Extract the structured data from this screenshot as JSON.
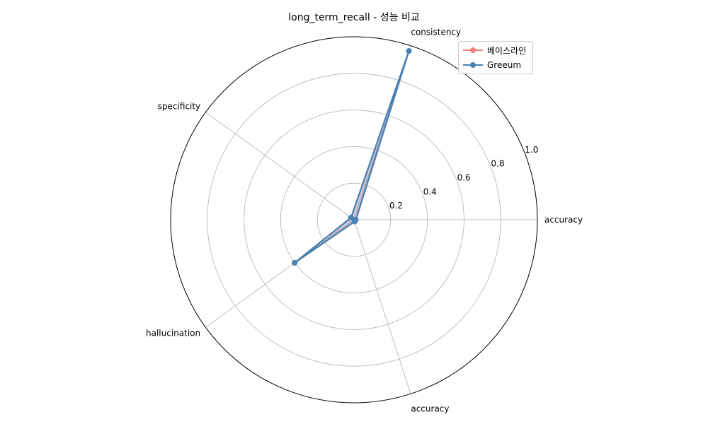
{
  "chart_data": {
    "type": "radar",
    "title": "long_term_recall - 성능 비교",
    "axes": [
      "accuracy",
      "consistency",
      "specificity",
      "hallucination",
      "accuracy"
    ],
    "radial_ticks": [
      "0.2",
      "0.4",
      "0.6",
      "0.8",
      "1.0"
    ],
    "rlim": [
      0,
      1.0
    ],
    "grid": true,
    "legend_position": "top-right",
    "series": [
      {
        "name": "베이스라인",
        "values": [
          0.01,
          0.97,
          0.02,
          0.4,
          0.01
        ],
        "color": "#f08080"
      },
      {
        "name": "Greeum",
        "values": [
          0.01,
          0.97,
          0.02,
          0.4,
          0.01
        ],
        "color": "#4682b4"
      }
    ]
  }
}
